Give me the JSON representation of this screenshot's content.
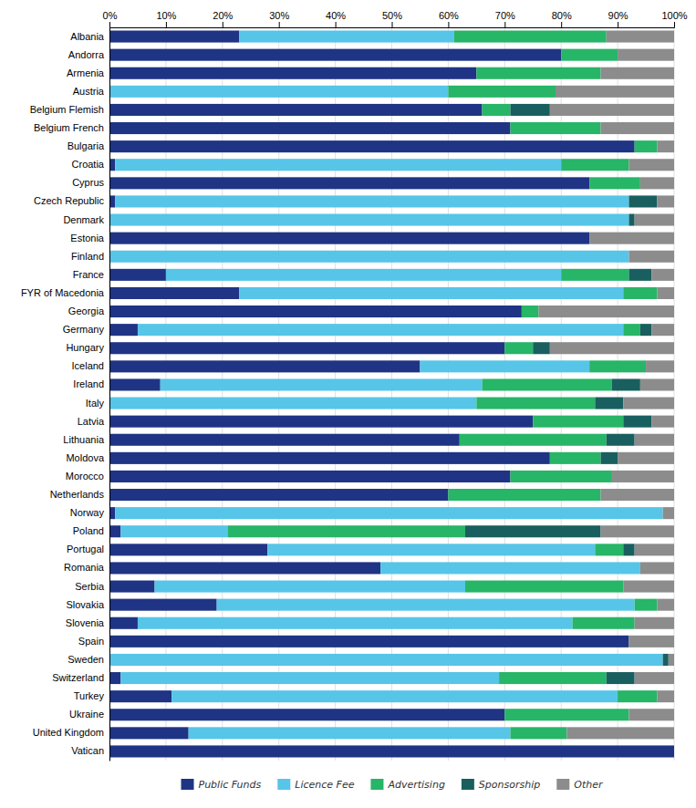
{
  "chart_data": {
    "type": "bar",
    "orientation": "horizontal",
    "stacked": true,
    "grid": true,
    "legend": "bottom",
    "categories": [
      "Albania",
      "Andorra",
      "Armenia",
      "Austria",
      "Belgium Flemish",
      "Belgium French",
      "Bulgaria",
      "Croatia",
      "Cyprus",
      "Czech Republic",
      "Denmark",
      "Estonia",
      "Finland",
      "France",
      "FYR of Macedonia",
      "Georgia",
      "Germany",
      "Hungary",
      "Iceland",
      "Ireland",
      "Italy",
      "Latvia",
      "Lithuania",
      "Moldova",
      "Morocco",
      "Netherlands",
      "Norway",
      "Poland",
      "Portugal",
      "Romania",
      "Serbia",
      "Slovakia",
      "Slovenia",
      "Spain",
      "Sweden",
      "Switzerland",
      "Turkey",
      "Ukraine",
      "United Kingdom",
      "Vatican"
    ],
    "series": [
      {
        "name": "Public Funds",
        "color": "#1f3484",
        "values": [
          23,
          80,
          65,
          0,
          66,
          71,
          93,
          1,
          85,
          1,
          0,
          85,
          0,
          10,
          23,
          73,
          5,
          70,
          55,
          9,
          0,
          75,
          62,
          78,
          71,
          60,
          1,
          2,
          28,
          48,
          8,
          19,
          5,
          92,
          0,
          2,
          11,
          70,
          14,
          100
        ]
      },
      {
        "name": "Licence Fee",
        "color": "#56c5e8",
        "values": [
          38,
          0,
          0,
          60,
          0,
          0,
          0,
          79,
          0,
          91,
          92,
          0,
          92,
          70,
          68,
          0,
          86,
          0,
          30,
          57,
          65,
          0,
          0,
          0,
          0,
          0,
          97,
          19,
          58,
          46,
          55,
          74,
          77,
          0,
          98,
          67,
          79,
          0,
          57,
          0
        ]
      },
      {
        "name": "Advertising",
        "color": "#27b567",
        "values": [
          27,
          10,
          22,
          19,
          5,
          16,
          4,
          12,
          9,
          0,
          0,
          0,
          0,
          12,
          6,
          3,
          3,
          5,
          10,
          23,
          21,
          16,
          26,
          9,
          18,
          27,
          0,
          42,
          5,
          0,
          28,
          4,
          11,
          0,
          0,
          19,
          7,
          22,
          10,
          0
        ]
      },
      {
        "name": "Sponsorship",
        "color": "#1a5f5f",
        "values": [
          0,
          0,
          0,
          0,
          7,
          0,
          0,
          0,
          0,
          5,
          1,
          0,
          0,
          4,
          0,
          0,
          2,
          3,
          0,
          5,
          5,
          5,
          5,
          3,
          0,
          0,
          0,
          24,
          2,
          0,
          0,
          0,
          0,
          0,
          1,
          5,
          0,
          0,
          0,
          0
        ]
      },
      {
        "name": "Other",
        "color": "#8c8c8c",
        "values": [
          12,
          10,
          13,
          21,
          22,
          13,
          3,
          8,
          6,
          3,
          7,
          15,
          8,
          4,
          3,
          24,
          4,
          22,
          5,
          6,
          9,
          4,
          7,
          10,
          11,
          13,
          2,
          13,
          7,
          6,
          9,
          3,
          7,
          8,
          1,
          7,
          3,
          8,
          19,
          0
        ]
      }
    ],
    "xlim": [
      0,
      100
    ],
    "xticks": [
      {
        "value": 0,
        "label": "0%"
      },
      {
        "value": 10,
        "label": "10%"
      },
      {
        "value": 20,
        "label": "20%"
      },
      {
        "value": 30,
        "label": "30%"
      },
      {
        "value": 40,
        "label": "40%"
      },
      {
        "value": 50,
        "label": "50%"
      },
      {
        "value": 60,
        "label": "60%"
      },
      {
        "value": 70,
        "label": "70%"
      },
      {
        "value": 80,
        "label": "80%"
      },
      {
        "value": 90,
        "label": "90%"
      },
      {
        "value": 100,
        "label": "100%"
      }
    ]
  }
}
